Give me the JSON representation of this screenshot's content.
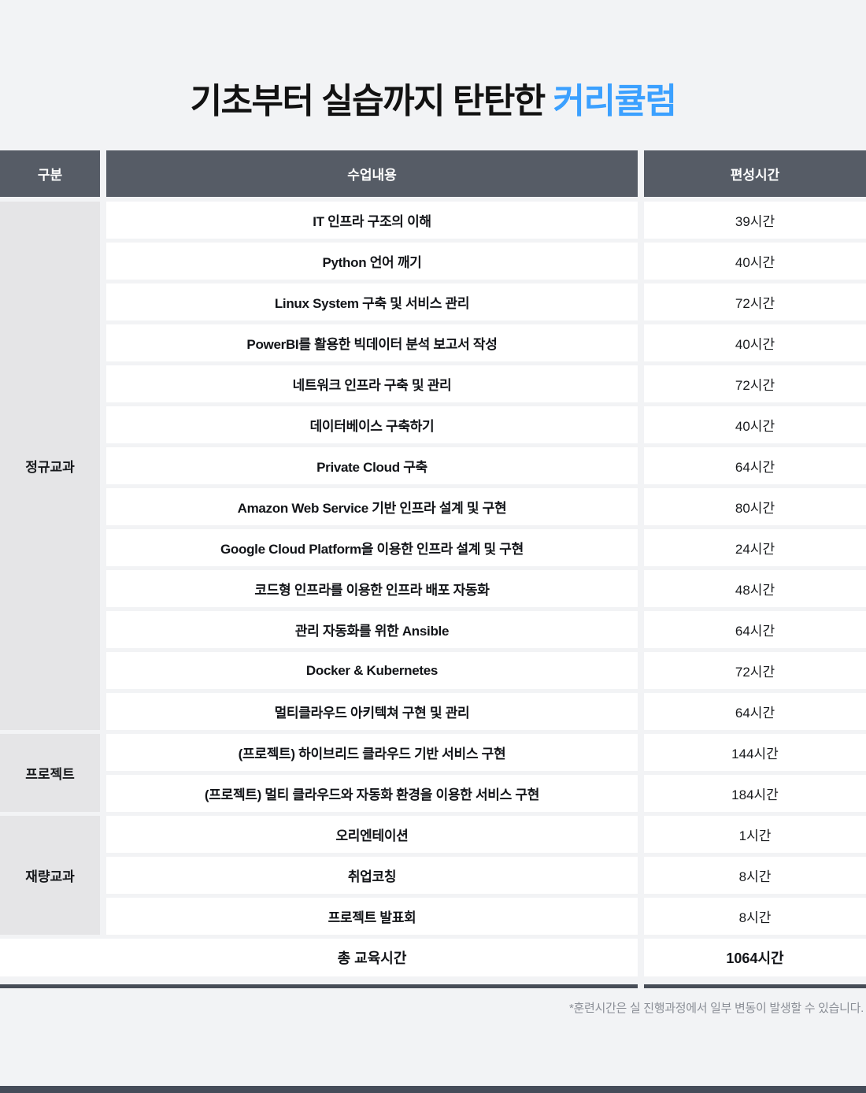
{
  "title": {
    "prefix": "기초부터 실습까지 탄탄한 ",
    "accent": "커리큘럼"
  },
  "colors": {
    "accent_blue": "#3BA0FF",
    "header_bg": "#565C66",
    "group_cell_bg": "#E5E5E7",
    "page_bg": "#F2F3F5",
    "row_bg": "#FFFFFF",
    "divider_dark": "#474D57",
    "footnote_gray": "#8A8E96"
  },
  "table": {
    "headers": [
      "구분",
      "수업내용",
      "편성시간"
    ],
    "groups": [
      {
        "label": "정규교과",
        "rows": [
          {
            "subject": "IT 인프라 구조의 이해",
            "hours": "39시간"
          },
          {
            "subject": "Python 언어 깨기",
            "hours": "40시간"
          },
          {
            "subject": "Linux System 구축 및 서비스 관리",
            "hours": "72시간"
          },
          {
            "subject": "PowerBI를 활용한 빅데이터 분석 보고서 작성",
            "hours": "40시간"
          },
          {
            "subject": "네트워크 인프라 구축 및 관리",
            "hours": "72시간"
          },
          {
            "subject": "데이터베이스 구축하기",
            "hours": "40시간"
          },
          {
            "subject": "Private Cloud 구축",
            "hours": "64시간"
          },
          {
            "subject": "Amazon Web Service 기반 인프라 설계 및 구현",
            "hours": "80시간"
          },
          {
            "subject": "Google Cloud Platform을 이용한 인프라 설계 및 구현",
            "hours": "24시간"
          },
          {
            "subject": "코드형 인프라를 이용한 인프라 배포 자동화",
            "hours": "48시간"
          },
          {
            "subject": "관리 자동화를 위한 Ansible",
            "hours": "64시간"
          },
          {
            "subject": "Docker & Kubernetes",
            "hours": "72시간"
          },
          {
            "subject": "멀티클라우드 아키텍쳐 구현 및 관리",
            "hours": "64시간"
          }
        ]
      },
      {
        "label": "프로젝트",
        "rows": [
          {
            "subject": "(프로젝트) 하이브리드 클라우드 기반 서비스 구현",
            "hours": "144시간"
          },
          {
            "subject": "(프로젝트) 멀티 클라우드와 자동화 환경을 이용한 서비스 구현",
            "hours": "184시간"
          }
        ]
      },
      {
        "label": "재량교과",
        "rows": [
          {
            "subject": "오리엔테이션",
            "hours": "1시간"
          },
          {
            "subject": "취업코칭",
            "hours": "8시간"
          },
          {
            "subject": "프로젝트 발표회",
            "hours": "8시간"
          }
        ]
      }
    ],
    "total": {
      "label": "총 교육시간",
      "value": "1064시간"
    }
  },
  "footnote": "*훈련시간은 실 진행과정에서 일부 변동이 발생할 수 있습니다."
}
